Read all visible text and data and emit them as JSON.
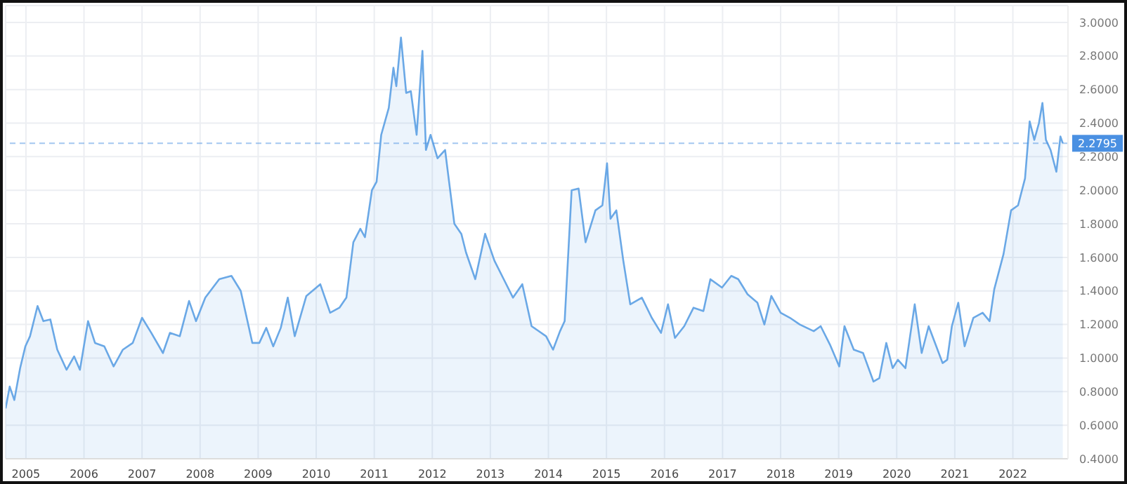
{
  "chart_data": {
    "type": "area",
    "x": [
      2004.65,
      2004.72,
      2004.8,
      2004.9,
      2004.99,
      2005.07,
      2005.2,
      2005.3,
      2005.42,
      2005.54,
      2005.7,
      2005.83,
      2005.93,
      2006.07,
      2006.19,
      2006.35,
      2006.51,
      2006.67,
      2006.84,
      2007.0,
      2007.16,
      2007.36,
      2007.48,
      2007.65,
      2007.81,
      2007.93,
      2008.09,
      2008.33,
      2008.54,
      2008.7,
      2008.9,
      2009.02,
      2009.14,
      2009.26,
      2009.39,
      2009.51,
      2009.63,
      2009.83,
      2010.07,
      2010.24,
      2010.4,
      2010.52,
      2010.64,
      2010.76,
      2010.84,
      2010.96,
      2011.04,
      2011.12,
      2011.25,
      2011.33,
      2011.38,
      2011.46,
      2011.55,
      2011.63,
      2011.73,
      2011.83,
      2011.89,
      2011.97,
      2012.09,
      2012.22,
      2012.3,
      2012.38,
      2012.5,
      2012.58,
      2012.74,
      2012.91,
      2013.07,
      2013.23,
      2013.39,
      2013.55,
      2013.71,
      2013.96,
      2014.08,
      2014.2,
      2014.28,
      2014.4,
      2014.52,
      2014.64,
      2014.81,
      2014.93,
      2015.01,
      2015.07,
      2015.17,
      2015.29,
      2015.41,
      2015.61,
      2015.78,
      2015.94,
      2016.06,
      2016.18,
      2016.34,
      2016.5,
      2016.67,
      2016.79,
      2016.99,
      2017.15,
      2017.27,
      2017.43,
      2017.6,
      2017.72,
      2017.84,
      2018.0,
      2018.16,
      2018.33,
      2018.57,
      2018.69,
      2018.85,
      2019.01,
      2019.1,
      2019.26,
      2019.42,
      2019.6,
      2019.7,
      2019.82,
      2019.93,
      2020.02,
      2020.15,
      2020.31,
      2020.43,
      2020.55,
      2020.67,
      2020.79,
      2020.87,
      2020.95,
      2021.06,
      2021.17,
      2021.32,
      2021.48,
      2021.6,
      2021.68,
      2021.84,
      2021.97,
      2022.09,
      2022.21,
      2022.29,
      2022.37,
      2022.45,
      2022.51,
      2022.57,
      2022.65,
      2022.75,
      2022.82,
      2022.86
    ],
    "series": [
      {
        "color": "#6aa8e6",
        "values": [
          0.7,
          0.83,
          0.75,
          0.94,
          1.07,
          1.13,
          1.31,
          1.22,
          1.23,
          1.05,
          0.93,
          1.01,
          0.93,
          1.22,
          1.09,
          1.07,
          0.95,
          1.05,
          1.09,
          1.24,
          1.15,
          1.03,
          1.15,
          1.13,
          1.34,
          1.22,
          1.36,
          1.47,
          1.49,
          1.4,
          1.09,
          1.09,
          1.18,
          1.07,
          1.18,
          1.36,
          1.13,
          1.37,
          1.44,
          1.27,
          1.3,
          1.36,
          1.69,
          1.77,
          1.72,
          2.0,
          2.05,
          2.33,
          2.49,
          2.73,
          2.62,
          2.91,
          2.58,
          2.59,
          2.33,
          2.83,
          2.24,
          2.33,
          2.19,
          2.24,
          2.02,
          1.8,
          1.74,
          1.63,
          1.47,
          1.74,
          1.58,
          1.47,
          1.36,
          1.44,
          1.19,
          1.13,
          1.05,
          1.16,
          1.22,
          2.0,
          2.01,
          1.69,
          1.88,
          1.91,
          2.16,
          1.83,
          1.88,
          1.58,
          1.32,
          1.36,
          1.24,
          1.15,
          1.32,
          1.12,
          1.19,
          1.3,
          1.28,
          1.47,
          1.42,
          1.49,
          1.47,
          1.38,
          1.33,
          1.2,
          1.37,
          1.27,
          1.24,
          1.2,
          1.16,
          1.19,
          1.08,
          0.95,
          1.19,
          1.05,
          1.03,
          0.86,
          0.88,
          1.09,
          0.94,
          0.99,
          0.94,
          1.32,
          1.03,
          1.19,
          1.08,
          0.97,
          0.99,
          1.19,
          1.33,
          1.07,
          1.24,
          1.27,
          1.22,
          1.41,
          1.62,
          1.88,
          1.91,
          2.07,
          2.41,
          2.3,
          2.4,
          2.52,
          2.3,
          2.24,
          2.11,
          2.32,
          2.28
        ]
      }
    ],
    "xlim": [
      2004.65,
      2022.95
    ],
    "xticks": [
      2005,
      2006,
      2007,
      2008,
      2009,
      2010,
      2011,
      2012,
      2013,
      2014,
      2015,
      2016,
      2017,
      2018,
      2019,
      2020,
      2021,
      2022
    ],
    "ylim": [
      0.4,
      3.1
    ],
    "yticks": [
      {
        "value": 0.4,
        "label": "0.4000"
      },
      {
        "value": 0.6,
        "label": "0.6000"
      },
      {
        "value": 0.8,
        "label": "0.8000"
      },
      {
        "value": 1.0,
        "label": "1.0000"
      },
      {
        "value": 1.2,
        "label": "1.2000"
      },
      {
        "value": 1.4,
        "label": "1.4000"
      },
      {
        "value": 1.6,
        "label": "1.6000"
      },
      {
        "value": 1.8,
        "label": "1.8000"
      },
      {
        "value": 2.0,
        "label": "2.0000"
      },
      {
        "value": 2.2,
        "label": "2.2000"
      },
      {
        "value": 2.4,
        "label": "2.4000"
      },
      {
        "value": 2.6,
        "label": "2.6000"
      },
      {
        "value": 2.8,
        "label": "2.8000"
      },
      {
        "value": 3.0,
        "label": "3.0000"
      }
    ],
    "ref_lines": [
      {
        "axis": "y",
        "value": 2.2795,
        "label": "2.2795",
        "color": "#4a90e2",
        "line_style": "dashed"
      }
    ],
    "grid": true,
    "marker": "none",
    "line_style": "solid"
  }
}
